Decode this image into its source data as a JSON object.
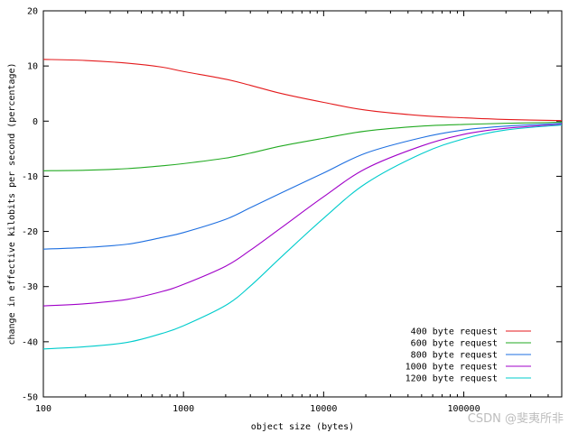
{
  "chart_data": {
    "type": "line",
    "xlabel": "object size (bytes)",
    "ylabel": "change in effective kilobits per second (percentage)",
    "xscale": "log",
    "xlim": [
      100,
      500000
    ],
    "ylim": [
      -50,
      20
    ],
    "xticks": [
      100,
      1000,
      10000,
      100000
    ],
    "xtick_labels": [
      "100",
      "1000",
      "10000",
      "100000"
    ],
    "yticks": [
      -50,
      -40,
      -30,
      -20,
      -10,
      0,
      10,
      20
    ],
    "ytick_labels": [
      "-50",
      "-40",
      "-30",
      "-20",
      "-10",
      "0",
      "10",
      "20"
    ],
    "grid": false,
    "legend_position": "bottom-right",
    "x": [
      100,
      200,
      400,
      700,
      1000,
      2000,
      3000,
      5000,
      10000,
      20000,
      50000,
      100000,
      200000,
      500000
    ],
    "series": [
      {
        "name": "400 byte request",
        "color": "#e41a1c",
        "values": [
          11.2,
          11.0,
          10.5,
          9.8,
          9.0,
          7.6,
          6.5,
          5.0,
          3.4,
          2.0,
          1.0,
          0.6,
          0.3,
          0.1
        ]
      },
      {
        "name": "600 byte request",
        "color": "#22aa22",
        "values": [
          -9.0,
          -8.9,
          -8.6,
          -8.1,
          -7.7,
          -6.7,
          -5.8,
          -4.5,
          -3.1,
          -1.8,
          -0.9,
          -0.6,
          -0.4,
          -0.2
        ]
      },
      {
        "name": "800 byte request",
        "color": "#1e6fe0",
        "values": [
          -23.2,
          -22.9,
          -22.3,
          -21.1,
          -20.2,
          -17.8,
          -15.7,
          -13.0,
          -9.4,
          -5.8,
          -3.0,
          -1.6,
          -0.9,
          -0.4
        ]
      },
      {
        "name": "1000 byte request",
        "color": "#a000c8",
        "values": [
          -33.5,
          -33.1,
          -32.3,
          -30.9,
          -29.6,
          -26.3,
          -23.4,
          -19.3,
          -13.7,
          -8.6,
          -4.5,
          -2.4,
          -1.3,
          -0.6
        ]
      },
      {
        "name": "1200 byte request",
        "color": "#00cccc",
        "values": [
          -41.3,
          -40.9,
          -40.1,
          -38.5,
          -37.1,
          -33.4,
          -29.9,
          -24.6,
          -17.6,
          -11.3,
          -5.9,
          -3.2,
          -1.6,
          -0.7
        ]
      }
    ]
  },
  "watermark": "CSDN @斐夷所非"
}
